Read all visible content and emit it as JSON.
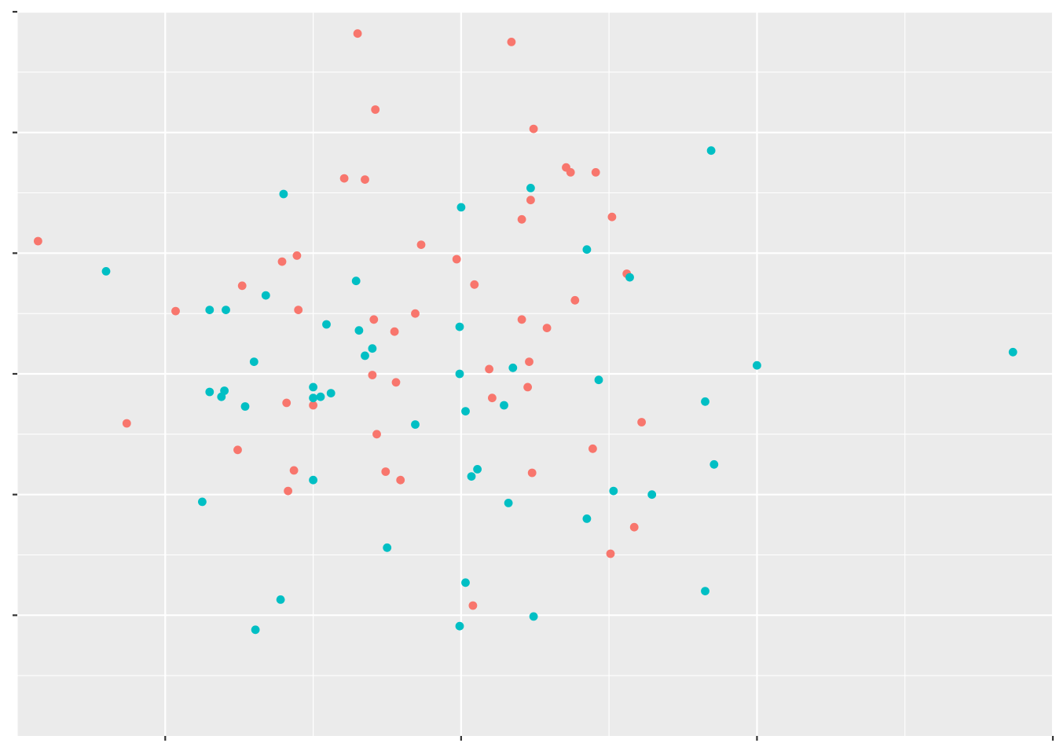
{
  "chart_data": {
    "type": "scatter",
    "title": "",
    "xlabel": "",
    "ylabel": "",
    "xlim": [
      -2.5,
      4.5
    ],
    "ylim": [
      -3.0,
      3.0
    ],
    "x_ticks": [
      -1.5,
      0.5,
      2.5,
      4.5
    ],
    "y_ticks": [
      -2,
      -1,
      0,
      1,
      2,
      3
    ],
    "x_tick_labels": [
      "",
      "",
      "",
      ""
    ],
    "y_tick_labels": [
      "",
      "",
      "",
      "",
      "",
      ""
    ],
    "grid": true,
    "legend": "none",
    "series": [
      {
        "color": "#F8766D",
        "points": [
          [
            -0.2,
            2.82
          ],
          [
            0.84,
            2.75
          ],
          [
            -0.08,
            2.19
          ],
          [
            0.99,
            2.03
          ],
          [
            -0.29,
            1.62
          ],
          [
            -0.15,
            1.61
          ],
          [
            1.21,
            1.71
          ],
          [
            1.24,
            1.67
          ],
          [
            1.41,
            1.67
          ],
          [
            0.97,
            1.44
          ],
          [
            0.91,
            1.28
          ],
          [
            1.52,
            1.3
          ],
          [
            -2.36,
            1.1
          ],
          [
            0.23,
            1.07
          ],
          [
            -0.71,
            0.93
          ],
          [
            -0.61,
            0.98
          ],
          [
            0.47,
            0.95
          ],
          [
            1.62,
            0.83
          ],
          [
            -0.98,
            0.73
          ],
          [
            0.59,
            0.74
          ],
          [
            1.27,
            0.61
          ],
          [
            -1.43,
            0.52
          ],
          [
            -0.6,
            0.53
          ],
          [
            0.19,
            0.5
          ],
          [
            -0.09,
            0.45
          ],
          [
            0.91,
            0.45
          ],
          [
            1.08,
            0.38
          ],
          [
            0.05,
            0.35
          ],
          [
            0.96,
            0.1
          ],
          [
            0.69,
            0.04
          ],
          [
            -0.1,
            -0.01
          ],
          [
            0.06,
            -0.07
          ],
          [
            0.95,
            -0.11
          ],
          [
            0.71,
            -0.2
          ],
          [
            -0.68,
            -0.24
          ],
          [
            -0.5,
            -0.26
          ],
          [
            -1.76,
            -0.41
          ],
          [
            1.72,
            -0.4
          ],
          [
            -0.07,
            -0.5
          ],
          [
            -1.01,
            -0.63
          ],
          [
            1.39,
            -0.62
          ],
          [
            -0.63,
            -0.8
          ],
          [
            -0.01,
            -0.81
          ],
          [
            0.98,
            -0.82
          ],
          [
            0.09,
            -0.88
          ],
          [
            -0.67,
            -0.97
          ],
          [
            1.67,
            -1.27
          ],
          [
            1.51,
            -1.49
          ],
          [
            0.58,
            -1.92
          ]
        ]
      },
      {
        "color": "#00BFC4",
        "points": [
          [
            2.19,
            1.85
          ],
          [
            0.97,
            1.54
          ],
          [
            -0.7,
            1.49
          ],
          [
            0.5,
            1.38
          ],
          [
            1.35,
            1.03
          ],
          [
            -1.9,
            0.85
          ],
          [
            1.64,
            0.8
          ],
          [
            -0.21,
            0.77
          ],
          [
            -0.82,
            0.65
          ],
          [
            -1.2,
            0.53
          ],
          [
            -1.09,
            0.53
          ],
          [
            -0.41,
            0.41
          ],
          [
            0.49,
            0.39
          ],
          [
            -0.19,
            0.36
          ],
          [
            -0.1,
            0.21
          ],
          [
            -0.15,
            0.15
          ],
          [
            -0.9,
            0.1
          ],
          [
            0.85,
            0.05
          ],
          [
            2.5,
            0.07
          ],
          [
            4.23,
            0.18
          ],
          [
            0.49,
            0.0
          ],
          [
            1.43,
            -0.05
          ],
          [
            -0.5,
            -0.11
          ],
          [
            -1.1,
            -0.14
          ],
          [
            -1.2,
            -0.15
          ],
          [
            -0.38,
            -0.16
          ],
          [
            -0.45,
            -0.19
          ],
          [
            -1.12,
            -0.19
          ],
          [
            -0.5,
            -0.2
          ],
          [
            -0.96,
            -0.27
          ],
          [
            0.79,
            -0.26
          ],
          [
            2.15,
            -0.23
          ],
          [
            0.53,
            -0.31
          ],
          [
            0.19,
            -0.42
          ],
          [
            2.21,
            -0.75
          ],
          [
            0.61,
            -0.79
          ],
          [
            0.57,
            -0.85
          ],
          [
            -0.5,
            -0.88
          ],
          [
            1.53,
            -0.97
          ],
          [
            1.79,
            -1.0
          ],
          [
            -1.25,
            -1.06
          ],
          [
            0.82,
            -1.07
          ],
          [
            1.35,
            -1.2
          ],
          [
            0.0,
            -1.44
          ],
          [
            0.53,
            -1.73
          ],
          [
            2.15,
            -1.8
          ],
          [
            -0.72,
            -1.87
          ],
          [
            0.99,
            -2.01
          ],
          [
            0.49,
            -2.09
          ],
          [
            -0.89,
            -2.12
          ]
        ]
      }
    ]
  }
}
